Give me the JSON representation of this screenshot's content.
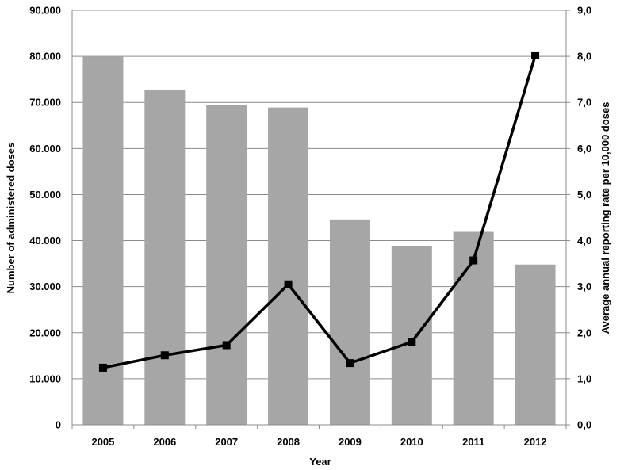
{
  "chart_data": {
    "type": "bar",
    "title": "",
    "xlabel": "Year",
    "ylabel": "Number of administered doses",
    "y2label": "Average annual reporting rate per 10,000 doses",
    "categories": [
      "2005",
      "2006",
      "2007",
      "2008",
      "2009",
      "2010",
      "2011",
      "2012"
    ],
    "ylim": [
      0,
      90000
    ],
    "y2lim": [
      0,
      9
    ],
    "y_ticks": [
      "0",
      "10.000",
      "20.000",
      "30.000",
      "40.000",
      "50.000",
      "60.000",
      "70.000",
      "80.000",
      "90.000"
    ],
    "y2_ticks": [
      "0,0",
      "1,0",
      "2,0",
      "3,0",
      "4,0",
      "5,0",
      "6,0",
      "7,0",
      "8,0",
      "9,0"
    ],
    "grid": true,
    "legend": "none",
    "series": [
      {
        "type": "bar",
        "axis": "left",
        "values": [
          80000,
          72800,
          69500,
          68900,
          44600,
          38800,
          41900,
          34800
        ],
        "color": "#a6a6a6"
      },
      {
        "type": "line",
        "axis": "right",
        "values": [
          1.24,
          1.51,
          1.73,
          3.05,
          1.34,
          1.8,
          3.57,
          8.02
        ],
        "color": "#000000",
        "marker": "square"
      }
    ]
  }
}
